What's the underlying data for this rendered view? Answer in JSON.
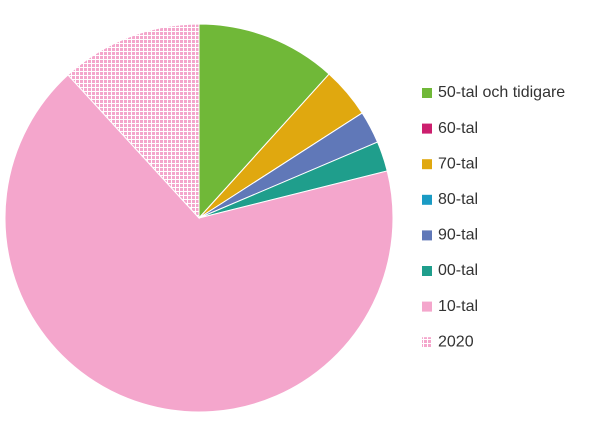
{
  "chart_data": {
    "type": "pie",
    "categories": [
      "50-tal och tidigare",
      "60-tal",
      "70-tal",
      "80-tal",
      "90-tal",
      "00-tal",
      "10-tal",
      "2020"
    ],
    "values": [
      11.7,
      0,
      4.2,
      0,
      2.7,
      2.5,
      67.1,
      11.8
    ],
    "colors": [
      "#70b838",
      "#cc1f6e",
      "#e0a80f",
      "#1a9bc4",
      "#6078b8",
      "#1f9e8c",
      "#f4a6cc",
      "#f4a6cc"
    ],
    "patterns": [
      null,
      null,
      null,
      null,
      null,
      null,
      null,
      "grid"
    ],
    "legend": "right"
  }
}
